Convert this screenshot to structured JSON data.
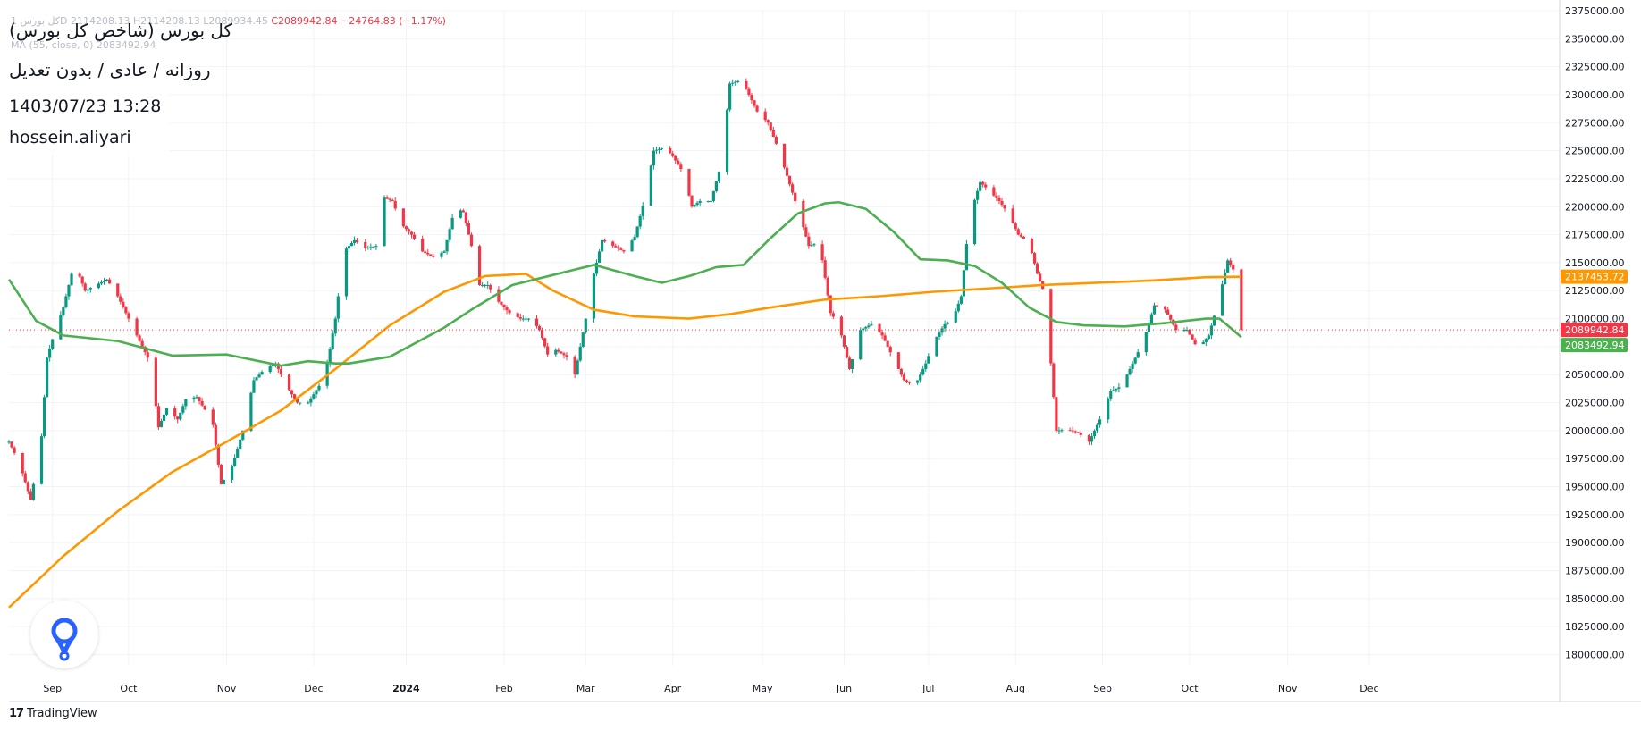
{
  "header": {
    "ohlc_text": "کل بورس 1D 2114208.13 H2114208.13 L2089934.45",
    "close_text": "C2089942.84",
    "change_text": "−24764.83 (−1.17%)",
    "ma_text": "MA (55, close, 0) 2083492.94"
  },
  "title": "کل بورس (شاخص کل بورس)",
  "subtitle": "روزانه / عادی / بدون تعدیل",
  "datetime": "1403/07/23 13:28",
  "author": "hossein.aliyari",
  "footer": {
    "brand": "TradingView",
    "mark": "17"
  },
  "logo": {
    "icon": "location-pin-icon",
    "color": "#2962ff"
  },
  "colors": {
    "up": "#089981",
    "down": "#f23645",
    "ma_fast": "#4caf50",
    "ma_slow": "#ff9800",
    "grid": "#f0f3fa",
    "axis_text": "#131722"
  },
  "chart_data": {
    "type": "candlestick",
    "ylim": [
      1790000,
      2375000
    ],
    "yticks": [
      1800000,
      1825000,
      1850000,
      1875000,
      1900000,
      1925000,
      1950000,
      1975000,
      2000000,
      2025000,
      2050000,
      2075000,
      2100000,
      2125000,
      2150000,
      2175000,
      2200000,
      2225000,
      2250000,
      2275000,
      2300000,
      2325000,
      2350000,
      2375000
    ],
    "ytick_labels": [
      "1800000.00",
      "1825000.00",
      "1850000.00",
      "1875000.00",
      "1900000.00",
      "1925000.00",
      "1950000.00",
      "1975000.00",
      "2000000.00",
      "2025000.00",
      "2050000.00",
      "2075000.00",
      "2100000.00",
      "2125000.00",
      "2150000.00",
      "2175000.00",
      "2200000.00",
      "2225000.00",
      "2250000.00",
      "2275000.00",
      "2300000.00",
      "2325000.00",
      "2350000.00",
      "2375000.00"
    ],
    "x_labels": [
      "Sep",
      "Oct",
      "Nov",
      "Dec",
      "2024",
      "Feb",
      "Mar",
      "Apr",
      "May",
      "Jun",
      "Jul",
      "Aug",
      "Sep",
      "Oct",
      "Nov",
      "Dec"
    ],
    "x_label_days": [
      16,
      44,
      80,
      112,
      146,
      182,
      212,
      244,
      277,
      307,
      338,
      370,
      402,
      434,
      470,
      500
    ],
    "x_range": [
      0,
      570
    ],
    "last_day": 453,
    "price_labels": [
      {
        "value": 2137453.72,
        "text": "2137453.72",
        "color": "#ff9800"
      },
      {
        "value": 2089942.84,
        "text": "2089942.84",
        "color": "#f23645"
      },
      {
        "value": 2083492.94,
        "text": "2083492.94",
        "color": "#4caf50"
      }
    ],
    "series": [
      {
        "kind": "close-path",
        "points": [
          [
            0,
            1990000
          ],
          [
            4,
            1970000
          ],
          [
            8,
            1938000
          ],
          [
            12,
            1995000
          ],
          [
            14,
            2065000
          ],
          [
            17,
            2090000
          ],
          [
            20,
            2110000
          ],
          [
            24,
            2150000
          ],
          [
            28,
            2125000
          ],
          [
            32,
            2130000
          ],
          [
            36,
            2135000
          ],
          [
            40,
            2120000
          ],
          [
            44,
            2100000
          ],
          [
            48,
            2080000
          ],
          [
            52,
            2060000
          ],
          [
            55,
            2003000
          ],
          [
            58,
            2020000
          ],
          [
            62,
            2010000
          ],
          [
            65,
            2028000
          ],
          [
            69,
            2030000
          ],
          [
            73,
            2015000
          ],
          [
            75,
            2005000
          ],
          [
            78,
            1952000
          ],
          [
            82,
            1968000
          ],
          [
            86,
            2000000
          ],
          [
            90,
            2045000
          ],
          [
            94,
            2055000
          ],
          [
            98,
            2060000
          ],
          [
            102,
            2040000
          ],
          [
            106,
            2025000
          ],
          [
            110,
            2025000
          ],
          [
            114,
            2040000
          ],
          [
            117,
            2060000
          ],
          [
            120,
            2100000
          ],
          [
            123,
            2160000
          ],
          [
            127,
            2170000
          ],
          [
            131,
            2163000
          ],
          [
            135,
            2165000
          ],
          [
            138,
            2208000
          ],
          [
            141,
            2205000
          ],
          [
            144,
            2185000
          ],
          [
            148,
            2175000
          ],
          [
            152,
            2160000
          ],
          [
            156,
            2155000
          ],
          [
            160,
            2160000
          ],
          [
            164,
            2200000
          ],
          [
            167,
            2195000
          ],
          [
            170,
            2165000
          ],
          [
            173,
            2130000
          ],
          [
            176,
            2130000
          ],
          [
            180,
            2115000
          ],
          [
            184,
            2105000
          ],
          [
            188,
            2100000
          ],
          [
            192,
            2100000
          ],
          [
            195,
            2090000
          ],
          [
            198,
            2068000
          ],
          [
            201,
            2072000
          ],
          [
            205,
            2066000
          ],
          [
            208,
            2050000
          ],
          [
            212,
            2100000
          ],
          [
            215,
            2140000
          ],
          [
            218,
            2170000
          ],
          [
            222,
            2165000
          ],
          [
            226,
            2160000
          ],
          [
            230,
            2173000
          ],
          [
            234,
            2210000
          ],
          [
            237,
            2250000
          ],
          [
            241,
            2253000
          ],
          [
            244,
            2245000
          ],
          [
            248,
            2230000
          ],
          [
            251,
            2200000
          ],
          [
            254,
            2205000
          ],
          [
            258,
            2205000
          ],
          [
            262,
            2240000
          ],
          [
            265,
            2310000
          ],
          [
            268,
            2312000
          ],
          [
            271,
            2305000
          ],
          [
            275,
            2285000
          ],
          [
            279,
            2275000
          ],
          [
            283,
            2250000
          ],
          [
            287,
            2220000
          ],
          [
            291,
            2190000
          ],
          [
            294,
            2165000
          ],
          [
            298,
            2168000
          ],
          [
            302,
            2105000
          ],
          [
            305,
            2095000
          ],
          [
            309,
            2055000
          ],
          [
            313,
            2090000
          ],
          [
            317,
            2095000
          ],
          [
            321,
            2085000
          ],
          [
            325,
            2065000
          ],
          [
            329,
            2045000
          ],
          [
            333,
            2040000
          ],
          [
            337,
            2060000
          ],
          [
            340,
            2080000
          ],
          [
            344,
            2095000
          ],
          [
            347,
            2100000
          ],
          [
            350,
            2120000
          ],
          [
            353,
            2190000
          ],
          [
            357,
            2222000
          ],
          [
            360,
            2215000
          ],
          [
            364,
            2205000
          ],
          [
            367,
            2195000
          ],
          [
            371,
            2175000
          ],
          [
            375,
            2168000
          ],
          [
            378,
            2140000
          ],
          [
            381,
            2120000
          ],
          [
            385,
            2000000
          ],
          [
            389,
            2001000
          ],
          [
            393,
            1998000
          ],
          [
            397,
            1990000
          ],
          [
            401,
            2010000
          ],
          [
            405,
            2035000
          ],
          [
            409,
            2040000
          ],
          [
            413,
            2060000
          ],
          [
            417,
            2080000
          ],
          [
            421,
            2112000
          ],
          [
            425,
            2108000
          ],
          [
            429,
            2090000
          ],
          [
            433,
            2090000
          ],
          [
            437,
            2073000
          ],
          [
            441,
            2085000
          ],
          [
            445,
            2120000
          ],
          [
            448,
            2152000
          ],
          [
            451,
            2140000
          ],
          [
            453,
            2089942.84
          ]
        ]
      },
      {
        "kind": "ma-fast",
        "points": [
          [
            0,
            2135000
          ],
          [
            10,
            2098000
          ],
          [
            20,
            2085000
          ],
          [
            40,
            2080000
          ],
          [
            60,
            2067000
          ],
          [
            80,
            2068000
          ],
          [
            100,
            2058000
          ],
          [
            110,
            2062000
          ],
          [
            120,
            2060000
          ],
          [
            125,
            2060000
          ],
          [
            140,
            2066000
          ],
          [
            160,
            2092000
          ],
          [
            170,
            2108000
          ],
          [
            185,
            2130000
          ],
          [
            205,
            2142000
          ],
          [
            215,
            2148000
          ],
          [
            230,
            2138000
          ],
          [
            240,
            2132000
          ],
          [
            250,
            2138000
          ],
          [
            260,
            2146000
          ],
          [
            270,
            2148000
          ],
          [
            280,
            2172000
          ],
          [
            290,
            2194000
          ],
          [
            300,
            2203000
          ],
          [
            305,
            2204000
          ],
          [
            315,
            2198000
          ],
          [
            325,
            2178000
          ],
          [
            335,
            2153000
          ],
          [
            345,
            2152000
          ],
          [
            355,
            2147000
          ],
          [
            365,
            2132000
          ],
          [
            375,
            2110000
          ],
          [
            385,
            2097000
          ],
          [
            395,
            2094000
          ],
          [
            410,
            2093000
          ],
          [
            425,
            2096000
          ],
          [
            440,
            2100000
          ],
          [
            445,
            2100000
          ],
          [
            453,
            2083492.94
          ]
        ]
      },
      {
        "kind": "ma-slow",
        "points": [
          [
            0,
            1842000
          ],
          [
            20,
            1888000
          ],
          [
            40,
            1928000
          ],
          [
            60,
            1963000
          ],
          [
            80,
            1990000
          ],
          [
            100,
            2018000
          ],
          [
            120,
            2055000
          ],
          [
            140,
            2094000
          ],
          [
            160,
            2124000
          ],
          [
            175,
            2138000
          ],
          [
            190,
            2140000
          ],
          [
            200,
            2125000
          ],
          [
            215,
            2108000
          ],
          [
            230,
            2102000
          ],
          [
            250,
            2100000
          ],
          [
            265,
            2104000
          ],
          [
            280,
            2110000
          ],
          [
            300,
            2117000
          ],
          [
            320,
            2120000
          ],
          [
            340,
            2124000
          ],
          [
            360,
            2127000
          ],
          [
            380,
            2130000
          ],
          [
            400,
            2132000
          ],
          [
            420,
            2134000
          ],
          [
            440,
            2137000
          ],
          [
            453,
            2137453.72
          ]
        ]
      }
    ]
  }
}
